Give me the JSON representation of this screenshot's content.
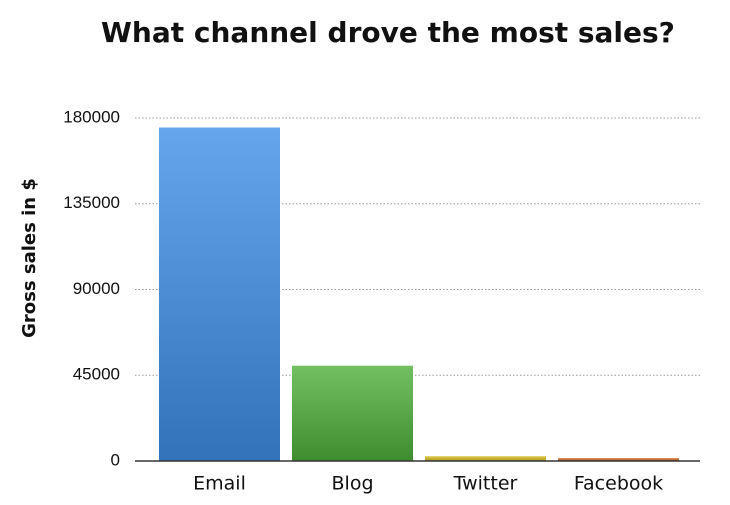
{
  "chart_data": {
    "type": "bar",
    "title": "What channel drove the most sales?",
    "y_label": "Gross sales in $",
    "categories": [
      "Email",
      "Blog",
      "Twitter",
      "Facebook"
    ],
    "values": [
      175000,
      50000,
      2500,
      1500
    ],
    "colors": [
      "#3f8fe6",
      "#4fb03a",
      "#d8bd22",
      "#d0661c"
    ],
    "ylim": [
      0,
      180000
    ],
    "yticks": [
      0,
      45000,
      90000,
      135000,
      180000
    ],
    "grid": true
  }
}
